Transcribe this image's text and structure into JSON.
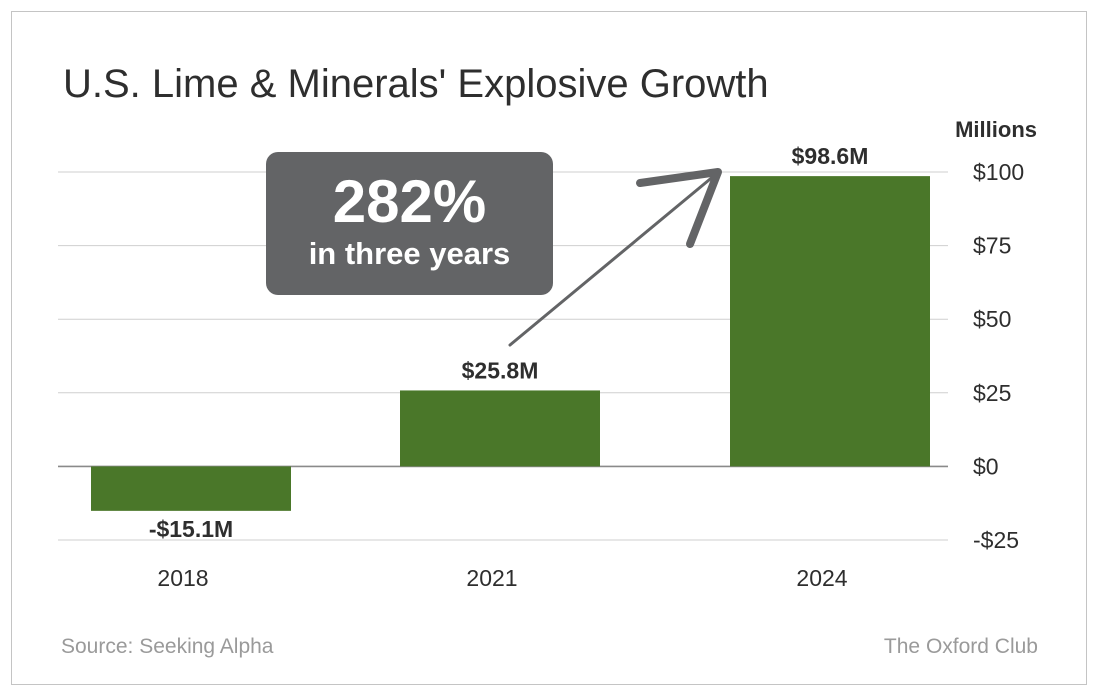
{
  "chart_data": {
    "type": "bar",
    "title": "U.S. Lime & Minerals' Explosive Growth",
    "unit_label": "Millions",
    "categories": [
      "2018",
      "2021",
      "2024"
    ],
    "values": [
      -15.1,
      25.8,
      98.6
    ],
    "data_labels": [
      "-$15.1M",
      "$25.8M",
      "$98.6M"
    ],
    "ylim": [
      -25,
      100
    ],
    "yticks": [
      100,
      75,
      50,
      25,
      0,
      -25
    ],
    "ytick_labels": [
      "$100",
      "$75",
      "$50",
      "$25",
      "$0",
      "-$25"
    ],
    "grid": true,
    "bar_color": "#4a7729",
    "annotation": {
      "value": "282%",
      "text": "in three years",
      "color": "#636466"
    }
  },
  "footer": {
    "source": "Source: Seeking Alpha",
    "brand": "The Oxford Club"
  }
}
